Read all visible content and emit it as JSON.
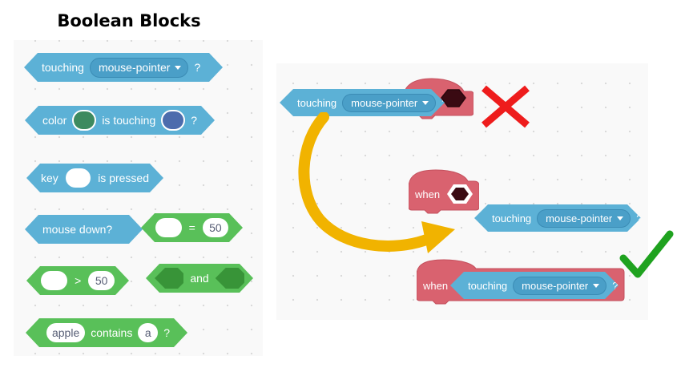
{
  "title": "Boolean Blocks",
  "left_blocks": {
    "touching": {
      "text": "touching",
      "dropdown": "mouse-pointer",
      "suffix": "?"
    },
    "color_touching": {
      "prefix": "color",
      "middle": "is touching",
      "suffix": "?",
      "color1": "#3d8a5f",
      "color2": "#4c6cad"
    },
    "key_pressed": {
      "prefix": "key",
      "suffix": "is pressed"
    },
    "mouse_down": {
      "text": "mouse down?"
    },
    "equals": {
      "operator": "=",
      "value": "50"
    },
    "greater": {
      "operator": ">",
      "value": "50"
    },
    "and": {
      "operator": "and"
    },
    "contains": {
      "input1": "apple",
      "operator": "contains",
      "input2": "a",
      "suffix": "?"
    }
  },
  "right_demo": {
    "floating_block": {
      "text": "touching",
      "dropdown": "mouse-pointer",
      "suffix": "?"
    },
    "hat_label": "when",
    "loose_block": {
      "text": "touching",
      "dropdown": "mouse-pointer",
      "suffix": "?"
    },
    "combined": {
      "hat_label": "when",
      "text": "touching",
      "dropdown": "mouse-pointer",
      "suffix": "?"
    },
    "wrong_icon": "x-mark-icon",
    "right_icon": "check-mark-icon",
    "colors": {
      "blue": "#5cb1d6",
      "green": "#59c059",
      "hat": "#d9626f",
      "arrow": "#f1b300",
      "cross": "#ee1c1c",
      "check": "#1fa21f"
    }
  }
}
